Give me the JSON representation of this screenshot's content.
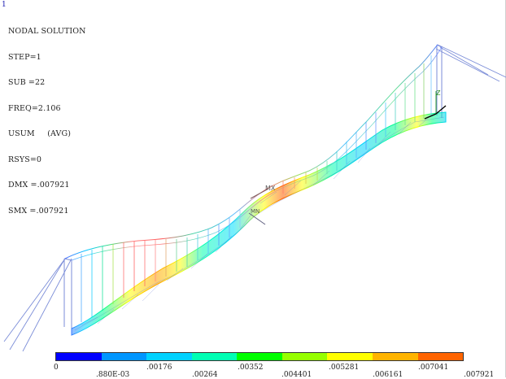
{
  "window": {
    "number": "1"
  },
  "info_lines": [
    "NODAL SOLUTION",
    "STEP=1",
    "SUB =22",
    "FREQ=2.106",
    "USUM     (AVG)",
    "RSYS=0",
    "DMX =.007921",
    "SMX =.007921"
  ],
  "markers": {
    "mx": "MX",
    "mn": "MN",
    "axis_z": "Z",
    "axis_y": "Y",
    "axis_x": "X"
  },
  "legend": {
    "colors": [
      "#0000ff",
      "#0096ff",
      "#00d2ff",
      "#00ffb4",
      "#00ff00",
      "#96ff00",
      "#ffff00",
      "#ffb400",
      "#ff6400",
      "#ff0000"
    ],
    "labels": [
      "0",
      ".880E-03",
      ".00176",
      ".00264",
      ".00352",
      ".004401",
      ".005281",
      ".006161",
      ".007041",
      ".007921"
    ]
  }
}
